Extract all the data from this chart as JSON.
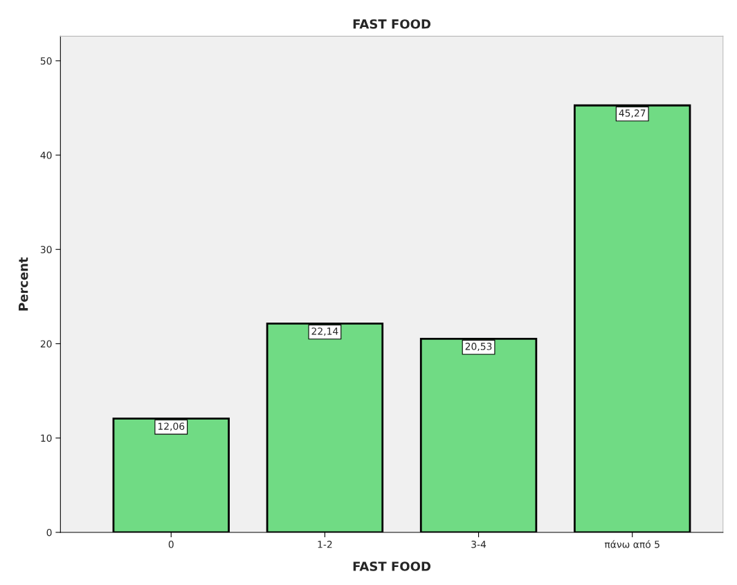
{
  "chart_data": {
    "type": "bar",
    "title": "FAST FOOD",
    "xlabel": "FAST FOOD",
    "ylabel": "Percent",
    "categories": [
      "0",
      "1-2",
      "3-4",
      "πάνω από 5"
    ],
    "values": [
      12.06,
      22.14,
      20.53,
      45.27
    ],
    "value_labels": [
      "12,06",
      "22,14",
      "20,53",
      "45,27"
    ],
    "color": "#70db84",
    "ylim": [
      0,
      52.6
    ],
    "yticks": [
      0,
      10,
      20,
      30,
      40,
      50
    ],
    "grid": false
  }
}
